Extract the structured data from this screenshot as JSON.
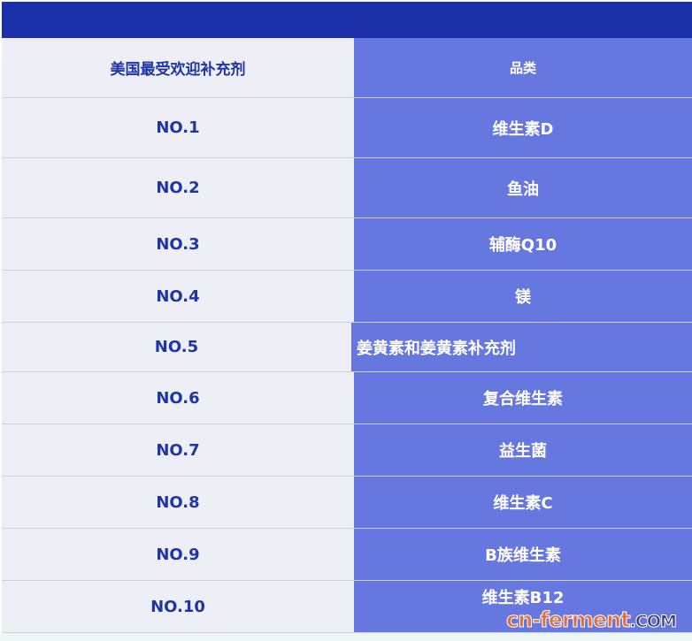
{
  "header": {
    "col1": "美国最受欢迎补充剂",
    "col2": "品类"
  },
  "rows": [
    {
      "rank": "NO.1",
      "category": "维生素D"
    },
    {
      "rank": "NO.2",
      "category": "鱼油"
    },
    {
      "rank": "NO.3",
      "category": "辅酶Q10"
    },
    {
      "rank": "NO.4",
      "category": "镁"
    },
    {
      "rank": "NO.5",
      "category": "姜黄素和姜黄素补充剂"
    },
    {
      "rank": "NO.6",
      "category": "复合维生素"
    },
    {
      "rank": "NO.7",
      "category": "益生菌"
    },
    {
      "rank": "NO.8",
      "category": "维生素C"
    },
    {
      "rank": "NO.9",
      "category": "B族维生素"
    },
    {
      "rank": "NO.10",
      "category": "维生素B12"
    }
  ],
  "watermark": {
    "main": "cn-ferment",
    "suffix": ".COM"
  },
  "colors": {
    "topbar": "#1b2fa8",
    "left": "#eeeff6",
    "right": "#6677e0",
    "text": "#1f34a6"
  }
}
